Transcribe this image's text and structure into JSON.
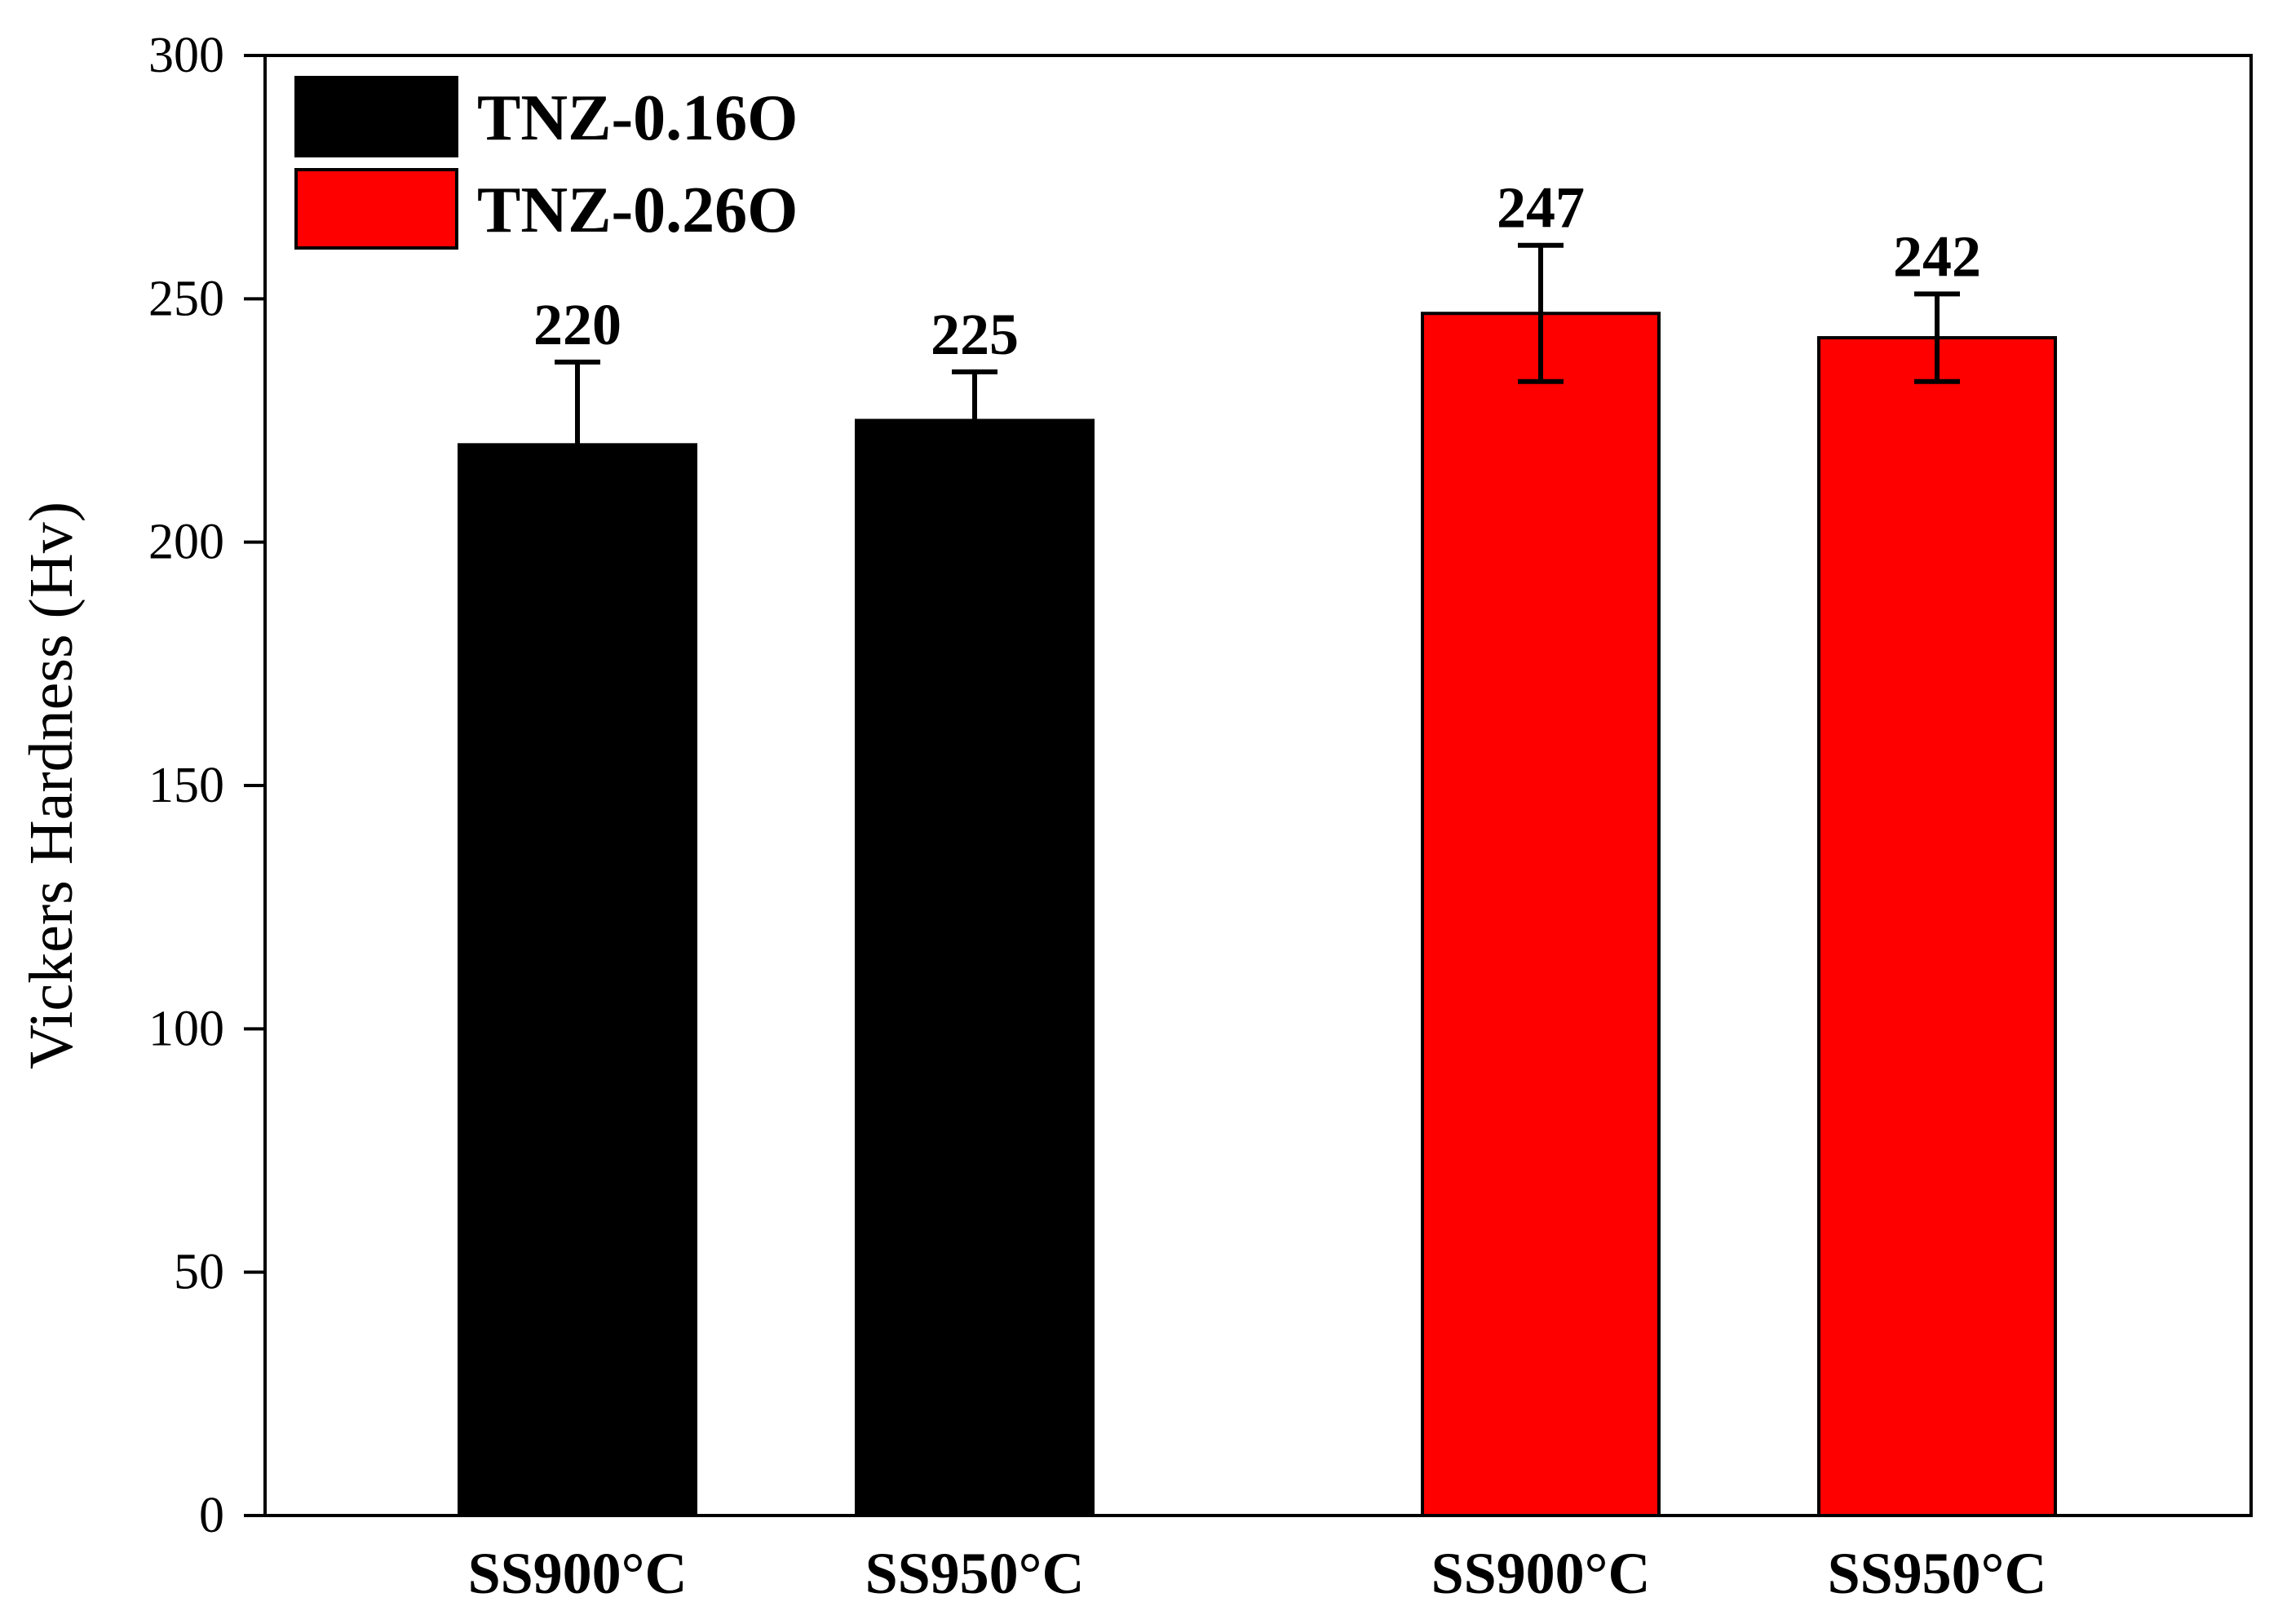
{
  "chart_data": {
    "type": "bar",
    "ylabel": "Vickers Hardness (Hv)",
    "ylim": [
      0,
      300
    ],
    "yticks": [
      0,
      50,
      100,
      150,
      200,
      250,
      300
    ],
    "grid": false,
    "legend_position": "top-left",
    "series": [
      {
        "name": "TNZ-0.16O",
        "color": "#000000",
        "categories": [
          "SS900°C",
          "SS950°C"
        ],
        "values": [
          220,
          225
        ],
        "errors": [
          17,
          10
        ],
        "labels": [
          "220",
          "225"
        ]
      },
      {
        "name": "TNZ-0.26O",
        "color": "#ff0000",
        "categories": [
          "SS900°C",
          "SS950°C"
        ],
        "values": [
          247,
          242
        ],
        "errors": [
          14,
          9
        ],
        "labels": [
          "247",
          "242"
        ]
      }
    ]
  }
}
